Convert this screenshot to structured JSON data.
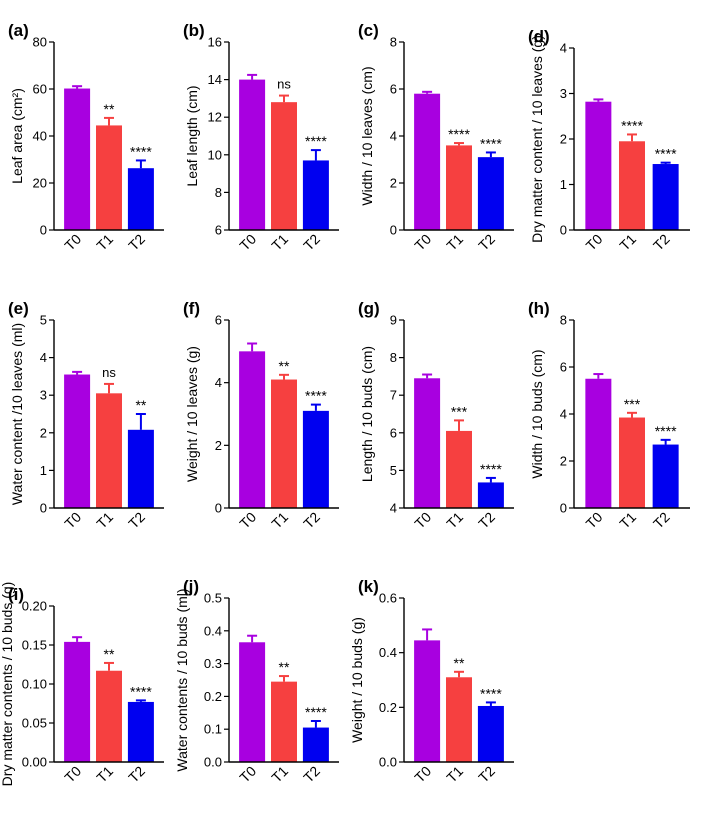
{
  "figure": {
    "categories": [
      "T0",
      "T1",
      "T2"
    ],
    "colors": [
      "#a800e0",
      "#f64040",
      "#0000f0"
    ]
  },
  "chart_data": [
    {
      "type": "bar",
      "panel": "(a)",
      "ylabel": "Leaf area (cm²)",
      "categories": [
        "T0",
        "T1",
        "T2"
      ],
      "values": [
        60.2,
        44.5,
        26.3
      ],
      "errors": [
        1.0,
        3.2,
        3.3
      ],
      "significance": [
        "",
        "**",
        "****"
      ],
      "ylim": [
        0,
        80
      ],
      "ticks": [
        0,
        20,
        40,
        60,
        80
      ],
      "tick_labels": [
        "0",
        "20",
        "40",
        "60",
        "80"
      ]
    },
    {
      "type": "bar",
      "panel": "(b)",
      "ylabel": "Leaf length (cm)",
      "categories": [
        "T0",
        "T1",
        "T2"
      ],
      "values": [
        14.0,
        12.8,
        9.7
      ],
      "errors": [
        0.25,
        0.35,
        0.55
      ],
      "significance": [
        "",
        "ns",
        "****"
      ],
      "ylim": [
        6,
        16
      ],
      "ticks": [
        6,
        8,
        10,
        12,
        14,
        16
      ],
      "tick_labels": [
        "6",
        "8",
        "10",
        "12",
        "14",
        "16"
      ]
    },
    {
      "type": "bar",
      "panel": "(c)",
      "ylabel": "Width / 10 leaves (cm)",
      "categories": [
        "T0",
        "T1",
        "T2"
      ],
      "values": [
        5.8,
        3.6,
        3.1
      ],
      "errors": [
        0.08,
        0.1,
        0.2
      ],
      "significance": [
        "",
        "****",
        "****"
      ],
      "ylim": [
        0,
        8
      ],
      "ticks": [
        0,
        2,
        4,
        6,
        8
      ],
      "tick_labels": [
        "0",
        "2",
        "4",
        "6",
        "8"
      ]
    },
    {
      "type": "bar",
      "panel": "(d)",
      "ylabel": "Dry matter content / 10 leaves (g)",
      "categories": [
        "T0",
        "T1",
        "T2"
      ],
      "values": [
        2.82,
        1.95,
        1.45
      ],
      "errors": [
        0.05,
        0.15,
        0.03
      ],
      "significance": [
        "",
        "****",
        "****"
      ],
      "ylim": [
        0,
        4
      ],
      "ticks": [
        0,
        1,
        2,
        3,
        4
      ],
      "tick_labels": [
        "0",
        "1",
        "2",
        "3",
        "4"
      ]
    },
    {
      "type": "bar",
      "panel": "(e)",
      "ylabel": "Water content /10 leaves (ml)",
      "categories": [
        "T0",
        "T1",
        "T2"
      ],
      "values": [
        3.55,
        3.05,
        2.08
      ],
      "errors": [
        0.07,
        0.25,
        0.42
      ],
      "significance": [
        "",
        "ns",
        "**"
      ],
      "ylim": [
        0,
        5
      ],
      "ticks": [
        0,
        1,
        2,
        3,
        4,
        5
      ],
      "tick_labels": [
        "0",
        "1",
        "2",
        "3",
        "4",
        "5"
      ]
    },
    {
      "type": "bar",
      "panel": "(f)",
      "ylabel": "Weight / 10 leaves  (g)",
      "categories": [
        "T0",
        "T1",
        "T2"
      ],
      "values": [
        5.0,
        4.1,
        3.1
      ],
      "errors": [
        0.25,
        0.15,
        0.2
      ],
      "significance": [
        "",
        "**",
        "****"
      ],
      "ylim": [
        0,
        6
      ],
      "ticks": [
        0,
        2,
        4,
        6
      ],
      "tick_labels": [
        "0",
        "2",
        "4",
        "6"
      ]
    },
    {
      "type": "bar",
      "panel": "(g)",
      "ylabel": "Length / 10 buds (cm)",
      "categories": [
        "T0",
        "T1",
        "T2"
      ],
      "values": [
        7.45,
        6.05,
        4.68
      ],
      "errors": [
        0.1,
        0.28,
        0.12
      ],
      "significance": [
        "",
        "***",
        "****"
      ],
      "ylim": [
        4,
        9
      ],
      "ticks": [
        4,
        5,
        6,
        7,
        8,
        9
      ],
      "tick_labels": [
        "4",
        "5",
        "6",
        "7",
        "8",
        "9"
      ]
    },
    {
      "type": "bar",
      "panel": "(h)",
      "ylabel": "Width / 10 buds (cm)",
      "categories": [
        "T0",
        "T1",
        "T2"
      ],
      "values": [
        5.5,
        3.85,
        2.7
      ],
      "errors": [
        0.2,
        0.2,
        0.2
      ],
      "significance": [
        "",
        "***",
        "****"
      ],
      "ylim": [
        0,
        8
      ],
      "ticks": [
        0,
        2,
        4,
        6,
        8
      ],
      "tick_labels": [
        "0",
        "2",
        "4",
        "6",
        "8"
      ]
    },
    {
      "type": "bar",
      "panel": "(i)",
      "ylabel": "Dry matter contents / 10 buds (g)",
      "categories": [
        "T0",
        "T1",
        "T2"
      ],
      "values": [
        0.154,
        0.117,
        0.077
      ],
      "errors": [
        0.006,
        0.01,
        0.002
      ],
      "significance": [
        "",
        "**",
        "****"
      ],
      "ylim": [
        0,
        0.2
      ],
      "ticks": [
        0,
        0.05,
        0.1,
        0.15,
        0.2
      ],
      "tick_labels": [
        "0.00",
        "0.05",
        "0.10",
        "0.15",
        "0.20"
      ]
    },
    {
      "type": "bar",
      "panel": "(j)",
      "ylabel": "Water contents / 10 buds (ml)",
      "categories": [
        "T0",
        "T1",
        "T2"
      ],
      "values": [
        0.365,
        0.245,
        0.105
      ],
      "errors": [
        0.02,
        0.017,
        0.02
      ],
      "significance": [
        "",
        "**",
        "****"
      ],
      "ylim": [
        0,
        0.5
      ],
      "ticks": [
        0,
        0.1,
        0.2,
        0.3,
        0.4,
        0.5
      ],
      "tick_labels": [
        "0.0",
        "0.1",
        "0.2",
        "0.3",
        "0.4",
        "0.5"
      ]
    },
    {
      "type": "bar",
      "panel": "(k)",
      "ylabel": "Weight / 10 buds (g)",
      "categories": [
        "T0",
        "T1",
        "T2"
      ],
      "values": [
        0.445,
        0.31,
        0.205
      ],
      "errors": [
        0.04,
        0.02,
        0.013
      ],
      "significance": [
        "",
        "**",
        "****"
      ],
      "ylim": [
        0,
        0.6
      ],
      "ticks": [
        0,
        0.2,
        0.4,
        0.6
      ],
      "tick_labels": [
        "0.0",
        "0.2",
        "0.4",
        "0.6"
      ]
    }
  ]
}
